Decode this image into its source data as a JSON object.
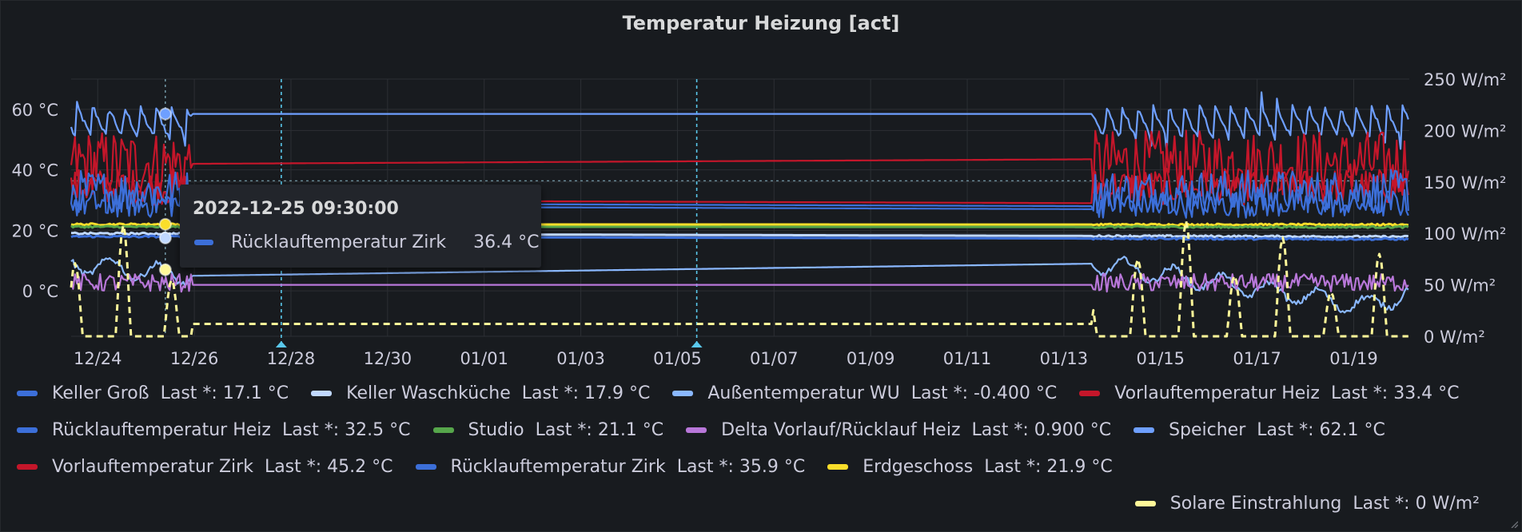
{
  "panel": {
    "title": "Temperatur Heizung [act]"
  },
  "tooltip": {
    "time": "2022-12-25 09:30:00",
    "series_name": "Rücklauftemperatur Zirk",
    "value": "36.4 °C",
    "color": "#3c6fd9"
  },
  "legend": {
    "rows": [
      [
        {
          "name": "Keller Groß",
          "stat": "Last *: 17.1 °C",
          "color": "#3c6fd9"
        },
        {
          "name": "Keller Waschküche",
          "stat": "Last *: 17.9 °C",
          "color": "#c0d8ff"
        },
        {
          "name": "Außentemperatur WU",
          "stat": "Last *: -0.400 °C",
          "color": "#8ab8ff"
        },
        {
          "name": "Vorlauftemperatur Heiz",
          "stat": "Last *: 33.4 °C",
          "color": "#c4162a"
        }
      ],
      [
        {
          "name": "Rücklauftemperatur Heiz",
          "stat": "Last *: 32.5 °C",
          "color": "#3c6fd9"
        },
        {
          "name": "Studio",
          "stat": "Last *: 21.1 °C",
          "color": "#56a64b"
        },
        {
          "name": "Delta Vorlauf/Rücklauf Heiz",
          "stat": "Last *: 0.900 °C",
          "color": "#b877d9"
        },
        {
          "name": "Speicher",
          "stat": "Last *: 62.1 °C",
          "color": "#6e9fff"
        }
      ],
      [
        {
          "name": "Vorlauftemperatur Zirk",
          "stat": "Last *: 45.2 °C",
          "color": "#c4162a"
        },
        {
          "name": "Rücklauftemperatur Zirk",
          "stat": "Last *: 35.9 °C",
          "color": "#3c6fd9"
        },
        {
          "name": "Erdgeschoss",
          "stat": "Last *: 21.9 °C",
          "color": "#fade2a"
        }
      ],
      [
        {
          "name": "Solare Einstrahlung",
          "stat": "Last *: 0 W/m²",
          "color": "#fff899"
        }
      ]
    ]
  },
  "chart_data": {
    "type": "line",
    "x_start": "2022-12-23",
    "x_tick_labels": [
      "12/24",
      "12/26",
      "12/28",
      "12/30",
      "01/01",
      "01/03",
      "01/05",
      "01/07",
      "01/09",
      "01/11",
      "01/13",
      "01/15",
      "01/17",
      "01/19"
    ],
    "y_left": {
      "min": -15,
      "max": 70,
      "ticks": [
        0,
        20,
        40,
        60
      ],
      "tick_labels": [
        "0 °C",
        "20 °C",
        "40 °C",
        "60 °C"
      ]
    },
    "y_right": {
      "min": 0,
      "max": 250,
      "ticks": [
        0,
        50,
        100,
        150,
        200,
        250
      ],
      "tick_labels": [
        "0 W/m²",
        "50 W/m²",
        "100 W/m²",
        "150 W/m²",
        "200 W/m²",
        "250 W/m²"
      ]
    },
    "x_range_days": [
      23.45,
      51.15
    ],
    "gap_days": [
      25.95,
      44.6
    ],
    "annotations": [
      {
        "x_day": 27.8
      },
      {
        "x_day": 36.4
      }
    ],
    "crosshair_x_day": 25.4,
    "series": [
      {
        "name": "Speicher",
        "axis": "left",
        "color": "#6e9fff",
        "style": "sawtooth",
        "base": 49,
        "amp": 13,
        "points": [
          [
            23.45,
            62
          ],
          [
            25.95,
            58.5
          ],
          [
            44.6,
            58.5
          ],
          [
            51.15,
            62.1
          ]
        ]
      },
      {
        "name": "Vorlauftemperatur Zirk",
        "axis": "left",
        "color": "#c4162a",
        "style": "noisy",
        "base": 38,
        "amp": 9,
        "points": [
          [
            23.45,
            48
          ],
          [
            25.95,
            42
          ],
          [
            44.6,
            43.5
          ],
          [
            51.15,
            45.2
          ]
        ]
      },
      {
        "name": "Vorlauftemperatur Heiz",
        "axis": "left",
        "color": "#c4162a",
        "style": "noisy",
        "base": 32,
        "amp": 5,
        "points": [
          [
            23.45,
            33
          ],
          [
            25.95,
            30
          ],
          [
            44.6,
            29
          ],
          [
            51.15,
            33.4
          ]
        ]
      },
      {
        "name": "Rücklauftemperatur Zirk",
        "axis": "left",
        "color": "#3c6fd9",
        "style": "noisy",
        "base": 30,
        "amp": 6,
        "points": [
          [
            23.45,
            36
          ],
          [
            25.95,
            29
          ],
          [
            44.6,
            28
          ],
          [
            51.15,
            35.9
          ]
        ]
      },
      {
        "name": "Rücklauftemperatur Heiz",
        "axis": "left",
        "color": "#3c6fd9",
        "style": "noisy",
        "base": 27,
        "amp": 4,
        "points": [
          [
            23.45,
            28
          ],
          [
            25.95,
            28
          ],
          [
            44.6,
            27
          ],
          [
            51.15,
            32.5
          ]
        ]
      },
      {
        "name": "Erdgeschoss",
        "axis": "left",
        "color": "#fade2a",
        "style": "flat",
        "points": [
          [
            23.45,
            22
          ],
          [
            51.15,
            21.9
          ]
        ]
      },
      {
        "name": "Studio",
        "axis": "left",
        "color": "#56a64b",
        "style": "flat",
        "points": [
          [
            23.45,
            21.2
          ],
          [
            51.15,
            21.1
          ]
        ]
      },
      {
        "name": "Keller Waschküche",
        "axis": "left",
        "color": "#c0d8ff",
        "style": "flat",
        "points": [
          [
            23.45,
            19
          ],
          [
            51.15,
            17.9
          ]
        ]
      },
      {
        "name": "Keller Groß",
        "axis": "left",
        "color": "#3c6fd9",
        "style": "flat",
        "points": [
          [
            23.45,
            18
          ],
          [
            51.15,
            17.1
          ]
        ]
      },
      {
        "name": "Außentemperatur WU",
        "axis": "left",
        "color": "#8ab8ff",
        "style": "wavy",
        "base": 6,
        "amp": 3,
        "points": [
          [
            23.45,
            9
          ],
          [
            25.95,
            5
          ],
          [
            44.6,
            9
          ],
          [
            50.3,
            -5
          ],
          [
            51.15,
            -0.4
          ]
        ]
      },
      {
        "name": "Delta Vorlauf/Rücklauf Heiz",
        "axis": "left",
        "color": "#b877d9",
        "style": "noisy",
        "base": 1.5,
        "amp": 2.5,
        "points": [
          [
            23.45,
            2
          ],
          [
            25.95,
            2
          ],
          [
            44.6,
            2
          ],
          [
            51.15,
            0.9
          ]
        ]
      },
      {
        "name": "Solare Einstrahlung",
        "axis": "right",
        "color": "#fff899",
        "style": "solar",
        "points": [
          [
            23.45,
            0
          ],
          [
            51.15,
            0
          ]
        ]
      }
    ]
  }
}
